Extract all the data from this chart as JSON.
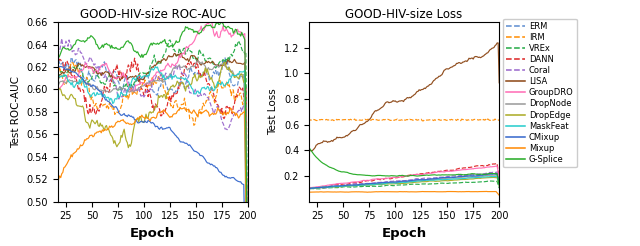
{
  "title_left": "GOOD-HIV-size ROC-AUC",
  "title_right": "GOOD-HIV-size Loss",
  "xlabel": "Epoch",
  "ylabel_left": "Test ROC-AUC",
  "ylabel_right": "Test Loss",
  "methods": [
    "ERM",
    "IRM",
    "VREx",
    "DANN",
    "Coral",
    "LISA",
    "GroupDRO",
    "DropNode",
    "DropEdge",
    "MaskFeat",
    "CMixup",
    "Mixup",
    "G-Splice"
  ],
  "colors": [
    "#5B8BD0",
    "#FF8C00",
    "#22AA44",
    "#DD2222",
    "#9966CC",
    "#8B4513",
    "#FF69B4",
    "#999999",
    "#AAAA22",
    "#22CCCC",
    "#3366CC",
    "#FF8800",
    "#22AA22"
  ],
  "linestyles": [
    "--",
    "--",
    "--",
    "--",
    "--",
    "-",
    "-",
    "-",
    "-",
    "-",
    "-",
    "-",
    "-"
  ],
  "figsize": [
    6.4,
    2.46
  ],
  "dpi": 100
}
